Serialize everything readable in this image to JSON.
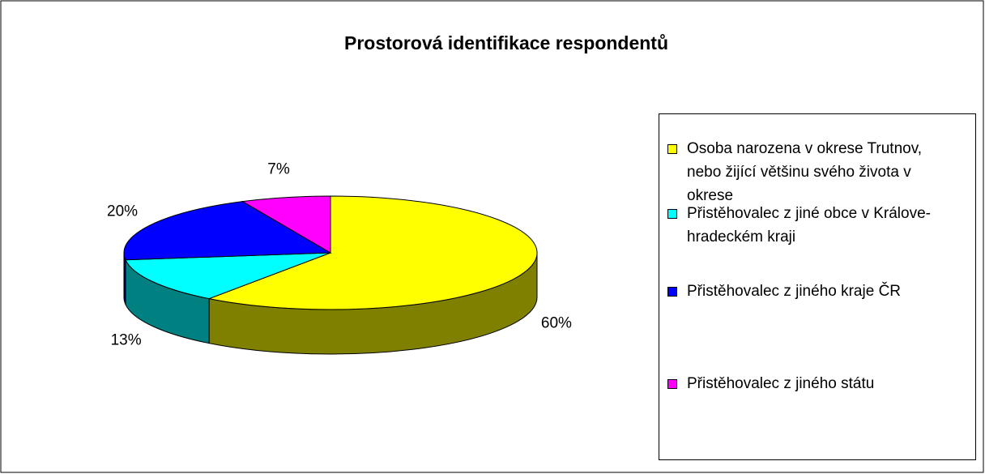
{
  "chart_data": {
    "type": "pie",
    "title": "Prostorová identifikace respondentů",
    "categories": [
      "Osoba narozena v okrese Trutnov, nebo žijící většinu svého života v okrese",
      "Přistěhovalec z jiné obce v Králove-hradeckém kraji",
      "Přistěhovalec z jiného kraje ČR",
      "Přistěhovalec z jiného státu"
    ],
    "values": [
      60,
      13,
      20,
      7
    ],
    "value_labels": [
      "60%",
      "13%",
      "20%",
      "7%"
    ],
    "colors": [
      "#ffff00",
      "#00ffff",
      "#0000ff",
      "#ff00ff"
    ],
    "legend": "right"
  }
}
